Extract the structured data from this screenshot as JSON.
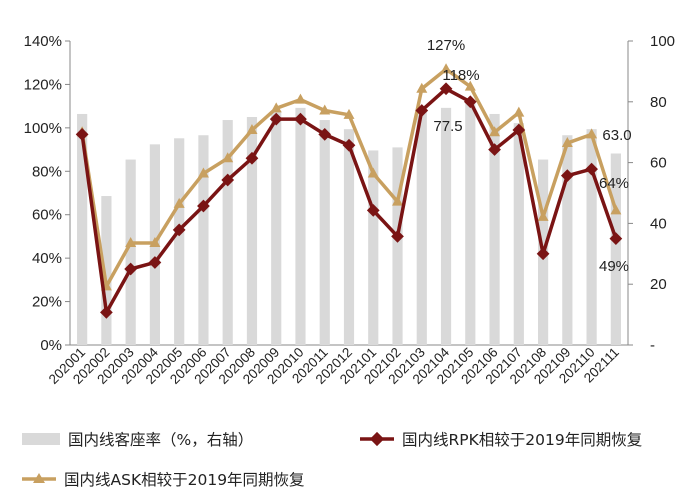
{
  "chart_data": {
    "type": "bar+line",
    "categories": [
      "202001",
      "202002",
      "202003",
      "202004",
      "202005",
      "202006",
      "202007",
      "202008",
      "202009",
      "202010",
      "202011",
      "202012",
      "202101",
      "202102",
      "202103",
      "202104",
      "202105",
      "202106",
      "202107",
      "202108",
      "202109",
      "202110",
      "202111"
    ],
    "left_axis": {
      "ticks": [
        "0%",
        "20%",
        "40%",
        "60%",
        "80%",
        "100%",
        "120%",
        "140%"
      ],
      "min": 0,
      "max": 140
    },
    "right_axis": {
      "ticks": [
        "-",
        "20",
        "40",
        "60",
        "80",
        "100"
      ],
      "min": 0,
      "max": 100
    },
    "series": [
      {
        "name": "国内线客座率（%，右轴）",
        "type": "bar",
        "axis": "right",
        "color": "#d9d9d9",
        "values": [
          76,
          49,
          61,
          66,
          68,
          69,
          74,
          75,
          77,
          78,
          74,
          71,
          64,
          65,
          77,
          78,
          80,
          76,
          73,
          61,
          69,
          71,
          63
        ]
      },
      {
        "name": "国内线RPK相较于2019年同期恢复",
        "type": "line",
        "axis": "left",
        "color": "#7a1414",
        "values": [
          97,
          15,
          35,
          38,
          53,
          64,
          76,
          86,
          104,
          104,
          97,
          92,
          62,
          50,
          108,
          118,
          112,
          90,
          99,
          42,
          78,
          81,
          49
        ]
      },
      {
        "name": "国内线ASK相较于2019年同期恢复",
        "type": "line",
        "axis": "left",
        "color": "#c8a060",
        "values": [
          98,
          27,
          47,
          47,
          65,
          79,
          86,
          99,
          109,
          113,
          108,
          106,
          79,
          66,
          118,
          127,
          119,
          98,
          107,
          59,
          93,
          97,
          62
        ]
      }
    ],
    "annotations": [
      "127%",
      "118%",
      "77.5",
      "63.0",
      "64%",
      "49%"
    ],
    "legend_placement": "bottom"
  }
}
